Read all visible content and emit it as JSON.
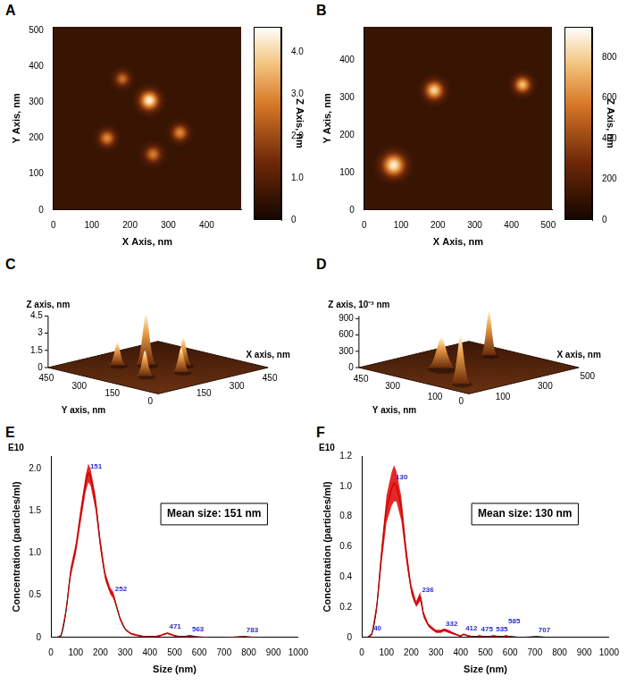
{
  "chart_data": [
    {
      "panel": "A",
      "type": "heatmap",
      "x_label": "X Axis, nm",
      "y_label": "Y Axis, nm",
      "xlim": [
        0,
        490
      ],
      "xticks": [
        0,
        100,
        200,
        300,
        400
      ],
      "ylim": [
        0,
        510
      ],
      "yticks": [
        0,
        100,
        200,
        300,
        400,
        500
      ],
      "grid": false,
      "colorbar": {
        "label": "Z Axis, nm",
        "lim": [
          0,
          4.6
        ],
        "ticks": [
          0,
          {
            "value": 1,
            "label": "1.0"
          },
          {
            "value": 2,
            "label": "2.0"
          },
          {
            "value": 3,
            "label": "3.0"
          },
          {
            "value": 4,
            "label": "4.0"
          }
        ]
      },
      "particles": {
        "x": [
          180,
          250,
          140,
          330,
          260
        ],
        "y": [
          365,
          305,
          200,
          215,
          155
        ],
        "height": [
          2.6,
          4.4,
          3.0,
          3.0,
          2.8
        ],
        "radius": [
          35,
          45,
          38,
          38,
          38
        ]
      }
    },
    {
      "panel": "B",
      "type": "heatmap",
      "x_label": "X Axis, nm",
      "y_label": "Y Axis, nm",
      "xlim": [
        0,
        510
      ],
      "xticks": [
        0,
        100,
        200,
        300,
        400,
        500
      ],
      "ylim": [
        0,
        490
      ],
      "yticks": [
        0,
        100,
        200,
        300,
        400
      ],
      "grid": false,
      "colorbar": {
        "label": "Z Axis, nm",
        "lim": [
          0,
          950
        ],
        "ticks": [
          0,
          200,
          400,
          600,
          800
        ]
      },
      "particles": {
        "x": [
          190,
          430,
          80
        ],
        "y": [
          320,
          335,
          120
        ],
        "height": [
          820,
          760,
          900
        ],
        "radius": [
          45,
          40,
          55
        ]
      }
    },
    {
      "panel": "C",
      "type": "surface3d",
      "x_label": "X axis, nm",
      "y_label": "Y axis, nm",
      "z_label": "Z axis, nm",
      "xlim": [
        0,
        500
      ],
      "xticks": [
        150,
        300,
        450
      ],
      "ylim": [
        0,
        500
      ],
      "yticks": [
        0,
        150,
        300,
        450
      ],
      "zlim": [
        0,
        4.5
      ],
      "zticks": [
        0,
        1.5,
        3,
        4.5
      ],
      "peaks": {
        "x": [
          180,
          250,
          140,
          330,
          260
        ],
        "y": [
          365,
          305,
          200,
          215,
          155
        ],
        "height": [
          2.0,
          4.4,
          2.2,
          2.4,
          2.1
        ],
        "radius": [
          25,
          30,
          25,
          25,
          25
        ]
      }
    },
    {
      "panel": "D",
      "type": "surface3d",
      "x_label": "X axis, nm",
      "y_label": "Y axis, nm",
      "z_label": "Z axis, 10⁻³ nm",
      "xlim": [
        0,
        520
      ],
      "xticks": [
        100,
        300,
        500
      ],
      "ylim": [
        0,
        520
      ],
      "yticks": [
        0,
        100,
        300,
        450
      ],
      "zlim": [
        0,
        950
      ],
      "zticks": [
        0,
        300,
        600,
        900
      ],
      "peaks": {
        "x": [
          190,
          430,
          80
        ],
        "y": [
          320,
          335,
          120
        ],
        "height": [
          560,
          820,
          880
        ],
        "radius": [
          45,
          25,
          30
        ]
      }
    },
    {
      "panel": "E",
      "type": "line",
      "x_label": "Size (nm)",
      "y_label": "Concentration (particles/ml)",
      "multiplier": "E10",
      "annotation": "Mean size: 151 nm",
      "color": "#000000",
      "grid": false,
      "xlim": [
        0,
        1000
      ],
      "xticks": [
        0,
        100,
        200,
        300,
        400,
        500,
        600,
        700,
        800,
        900,
        1000
      ],
      "ylim": [
        0,
        2.15
      ],
      "yticks": [
        0,
        0.5,
        {
          "value": 1,
          "label": "1.0"
        },
        1.5,
        {
          "value": 2,
          "label": "2.0"
        }
      ],
      "x": [
        0,
        20,
        40,
        60,
        80,
        100,
        120,
        140,
        151,
        160,
        180,
        200,
        220,
        240,
        252,
        260,
        280,
        300,
        320,
        340,
        360,
        380,
        400,
        420,
        440,
        460,
        471,
        480,
        500,
        520,
        540,
        563,
        580,
        600,
        650,
        700,
        750,
        783,
        800,
        850,
        900,
        950,
        1000
      ],
      "values": [
        0,
        0,
        0.02,
        0.3,
        0.78,
        1.05,
        1.45,
        1.82,
        1.95,
        1.9,
        1.6,
        1.1,
        0.72,
        0.55,
        0.5,
        0.42,
        0.22,
        0.1,
        0.05,
        0.03,
        0.02,
        0.01,
        0.01,
        0.01,
        0.02,
        0.04,
        0.05,
        0.04,
        0.02,
        0.01,
        0.01,
        0.02,
        0.01,
        0.005,
        0,
        0,
        0.005,
        0.01,
        0.005,
        0,
        0,
        0,
        0
      ],
      "error": [
        0,
        0,
        0.01,
        0.04,
        0.06,
        0.07,
        0.09,
        0.1,
        0.11,
        0.1,
        0.09,
        0.07,
        0.05,
        0.04,
        0.04,
        0.03,
        0.02,
        0.01,
        0.01,
        0.01,
        0.01,
        0.005,
        0.005,
        0.005,
        0.01,
        0.01,
        0.01,
        0.01,
        0.01,
        0.005,
        0.005,
        0.01,
        0.005,
        0.005,
        0,
        0,
        0.005,
        0.005,
        0.005,
        0,
        0,
        0,
        0
      ],
      "peak_labels": [
        151,
        252,
        471,
        563,
        783
      ]
    },
    {
      "panel": "F",
      "type": "line",
      "x_label": "Size (nm)",
      "y_label": "Concentration (particles/ml)",
      "multiplier": "E10",
      "annotation": "Mean size: 130 nm",
      "color": "#000000",
      "grid": false,
      "xlim": [
        0,
        1000
      ],
      "xticks": [
        0,
        100,
        200,
        300,
        400,
        500,
        600,
        700,
        800,
        900,
        1000
      ],
      "ylim": [
        0,
        1.2
      ],
      "yticks": [
        0,
        0.2,
        0.4,
        0.6,
        0.8,
        {
          "value": 1,
          "label": "1.0"
        },
        1.2
      ],
      "x": [
        0,
        20,
        40,
        60,
        80,
        100,
        120,
        130,
        140,
        160,
        180,
        200,
        220,
        236,
        250,
        270,
        300,
        320,
        332,
        350,
        380,
        400,
        412,
        430,
        460,
        475,
        500,
        535,
        560,
        585,
        600,
        650,
        707,
        750,
        800,
        900,
        1000
      ],
      "values": [
        0,
        0,
        0.02,
        0.2,
        0.55,
        0.85,
        0.98,
        1.02,
        1.0,
        0.85,
        0.55,
        0.32,
        0.22,
        0.27,
        0.15,
        0.08,
        0.04,
        0.04,
        0.05,
        0.04,
        0.02,
        0.01,
        0.02,
        0.01,
        0.005,
        0.01,
        0.005,
        0.01,
        0.005,
        0.01,
        0.005,
        0,
        0.005,
        0,
        0,
        0,
        0
      ],
      "error": [
        0,
        0,
        0.01,
        0.03,
        0.06,
        0.09,
        0.11,
        0.12,
        0.1,
        0.08,
        0.05,
        0.03,
        0.02,
        0.03,
        0.02,
        0.01,
        0.01,
        0.01,
        0.01,
        0.01,
        0.005,
        0.005,
        0.005,
        0.005,
        0,
        0.005,
        0,
        0.005,
        0,
        0.005,
        0,
        0,
        0,
        0,
        0,
        0,
        0
      ],
      "peak_labels": [
        40,
        130,
        236,
        332,
        412,
        475,
        535,
        585,
        707
      ]
    }
  ]
}
